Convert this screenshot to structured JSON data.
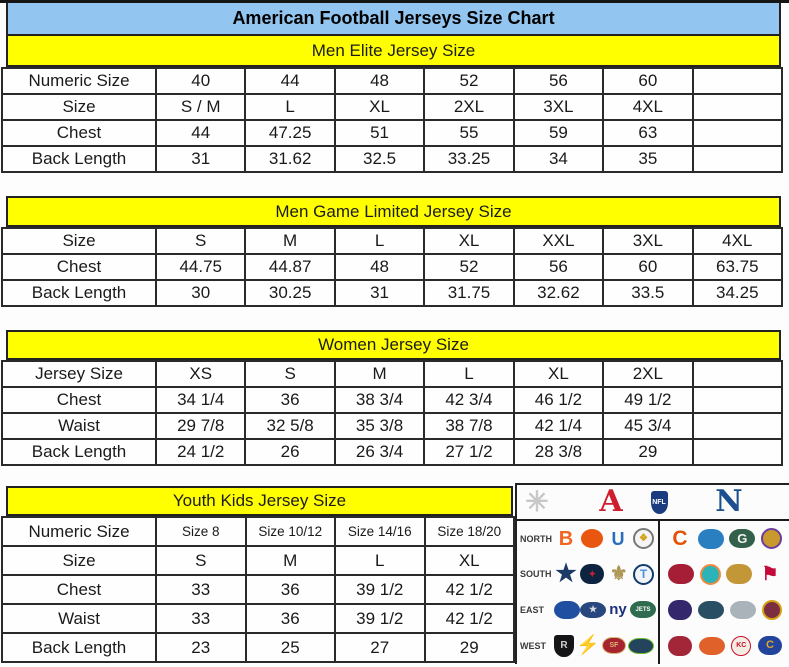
{
  "page": {
    "title": "American Football Jerseys Size Chart"
  },
  "colors": {
    "title_bar_bg": "#92c5f0",
    "section_band_bg": "#ffff00",
    "border": "#222222",
    "text": "#1a1a1a"
  },
  "tables": [
    {
      "name": "men-elite",
      "title": "Men Elite Jersey Size",
      "trailing_empty": true,
      "rows": [
        [
          "Numeric Size",
          "40",
          "44",
          "48",
          "52",
          "56",
          "60"
        ],
        [
          "Size",
          "S / M",
          "L",
          "XL",
          "2XL",
          "3XL",
          "4XL"
        ],
        [
          "Chest",
          "44",
          "47.25",
          "51",
          "55",
          "59",
          "63"
        ],
        [
          "Back Length",
          "31",
          "31.62",
          "32.5",
          "33.25",
          "34",
          "35"
        ]
      ]
    },
    {
      "name": "men-game-limited",
      "title": "Men Game Limited Jersey Size",
      "trailing_empty": false,
      "rows": [
        [
          "Size",
          "S",
          "M",
          "L",
          "XL",
          "XXL",
          "3XL",
          "4XL"
        ],
        [
          "Chest",
          "44.75",
          "44.87",
          "48",
          "52",
          "56",
          "60",
          "63.75"
        ],
        [
          "Back Length",
          "30",
          "30.25",
          "31",
          "31.75",
          "32.62",
          "33.5",
          "34.25"
        ]
      ]
    },
    {
      "name": "women",
      "title": "Women Jersey Size",
      "trailing_empty": true,
      "rows": [
        [
          "Jersey Size",
          "XS",
          "S",
          "M",
          "L",
          "XL",
          "2XL"
        ],
        [
          "Chest",
          "34 1/4",
          "36",
          "38 3/4",
          "42 3/4",
          "46 1/2",
          "49 1/2"
        ],
        [
          "Waist",
          "29 7/8",
          "32 5/8",
          "35 3/8",
          "38 7/8",
          "42 1/4",
          "45 3/4"
        ],
        [
          "Back Length",
          "24 1/2",
          "26",
          "26 3/4",
          "27 1/2",
          "28 3/8",
          "29"
        ]
      ]
    },
    {
      "name": "youth-kids",
      "title": "Youth Kids Jersey Size",
      "trailing_empty": false,
      "rows": [
        [
          "Numeric Size",
          "Size 8",
          "Size 10/12",
          "Size 14/16",
          "Size 18/20"
        ],
        [
          "Size",
          "S",
          "M",
          "L",
          "XL"
        ],
        [
          "Chest",
          "33",
          "36",
          "39 1/2",
          "42 1/2"
        ],
        [
          "Waist",
          "33",
          "36",
          "39 1/2",
          "42 1/2"
        ],
        [
          "Back Length",
          "23",
          "25",
          "27",
          "29"
        ]
      ]
    }
  ],
  "logo_panel": {
    "header": [
      {
        "name": "sunburst",
        "glyph": "✳",
        "fg": "#c8c8c8",
        "fs": 28
      },
      {
        "name": "afc-conference",
        "glyph": "A",
        "fg": "#cf1f2f",
        "fs": 30,
        "serif": true
      },
      {
        "name": "nfl-shield",
        "glyph": "NFL",
        "fg": "#ffffff",
        "bg": "#1b3c7e",
        "fs": 7,
        "w": 17,
        "h": 23,
        "shape": "shield"
      },
      {
        "name": "nfc-conference",
        "glyph": "N",
        "fg": "#1b4f8f",
        "fs": 30,
        "serif": true
      }
    ],
    "rows": [
      {
        "label": "NORTH",
        "afc": [
          {
            "name": "bengals",
            "glyph": "B",
            "fg": "#f26522",
            "fs": 20
          },
          {
            "name": "browns-helmet",
            "glyph": "",
            "bg": "#e8560f",
            "w": 22,
            "h": 19,
            "shape": "round"
          },
          {
            "name": "colts-horseshoe",
            "glyph": "U",
            "fg": "#2a6ebb",
            "fs": 18
          },
          {
            "name": "steelers",
            "glyph": "❖",
            "fg": "#d4a017",
            "bg": "#f4f4f4",
            "border": "2px solid #777",
            "fs": 10,
            "w": 21,
            "h": 21,
            "shape": "round"
          }
        ],
        "nfc": [
          {
            "name": "bears",
            "glyph": "C",
            "fg": "#e35205",
            "fs": 21
          },
          {
            "name": "lions",
            "glyph": "",
            "bg": "#2a7fc1",
            "w": 26,
            "h": 20,
            "shape": "oval"
          },
          {
            "name": "packers",
            "glyph": "G",
            "fg": "#f2f2f2",
            "bg": "#32604a",
            "fs": 13,
            "w": 26,
            "h": 19,
            "shape": "oval"
          },
          {
            "name": "vikings",
            "glyph": "",
            "bg": "#c9992e",
            "border": "2px solid #6a3e9e",
            "w": 21,
            "h": 21,
            "shape": "round"
          }
        ]
      },
      {
        "label": "SOUTH",
        "afc": [
          {
            "name": "cowboys-star",
            "glyph": "★",
            "fg": "#1b3a66",
            "fs": 24
          },
          {
            "name": "texans",
            "glyph": "✦",
            "fg": "#d02030",
            "bg": "#0d2440",
            "fs": 9,
            "w": 24,
            "h": 20,
            "shape": "oval"
          },
          {
            "name": "saints-fleur-de-lis",
            "glyph": "⚜",
            "fg": "#ad9554",
            "fs": 20
          },
          {
            "name": "titans",
            "glyph": "T",
            "fg": "#4b92db",
            "bg": "#f0f4f8",
            "border": "2px solid #123a6b",
            "fs": 12,
            "w": 21,
            "h": 21,
            "shape": "round"
          }
        ],
        "nfc": [
          {
            "name": "falcons",
            "glyph": "",
            "bg": "#a51e36",
            "w": 26,
            "h": 20,
            "shape": "oval"
          },
          {
            "name": "dolphins",
            "glyph": "",
            "bg": "#2bb3b8",
            "border": "2px solid #f08a3c",
            "w": 21,
            "h": 21,
            "shape": "round"
          },
          {
            "name": "jaguars",
            "glyph": "",
            "bg": "#c39738",
            "w": 26,
            "h": 20,
            "shape": "oval"
          },
          {
            "name": "buccaneers-flag",
            "glyph": "⚑",
            "fg": "#c6093b",
            "fs": 19
          }
        ]
      },
      {
        "label": "EAST",
        "afc": [
          {
            "name": "bills",
            "glyph": "",
            "bg": "#1f4fa0",
            "w": 26,
            "h": 18,
            "shape": "oval"
          },
          {
            "name": "patriots",
            "glyph": "★",
            "fg": "#d8dde3",
            "bg": "#27477e",
            "fs": 9,
            "w": 26,
            "h": 16,
            "shape": "oval"
          },
          {
            "name": "giants-ny",
            "glyph": "ny",
            "fg": "#1b2f7e",
            "fs": 15
          },
          {
            "name": "jets",
            "glyph": "JETS",
            "fg": "#ffffff",
            "bg": "#2f6b4f",
            "fs": 6,
            "w": 26,
            "h": 17,
            "shape": "oval"
          }
        ],
        "nfc": [
          {
            "name": "ravens",
            "glyph": "",
            "bg": "#35276b",
            "w": 24,
            "h": 20,
            "shape": "oval"
          },
          {
            "name": "panthers",
            "glyph": "",
            "bg": "#2a4e63",
            "w": 26,
            "h": 18,
            "shape": "oval"
          },
          {
            "name": "eagles",
            "glyph": "",
            "bg": "#aab3ba",
            "w": 26,
            "h": 18,
            "shape": "oval"
          },
          {
            "name": "redskins",
            "glyph": "",
            "bg": "#7a2e3f",
            "border": "2px solid #d4a017",
            "w": 20,
            "h": 20,
            "shape": "round"
          }
        ]
      },
      {
        "label": "WEST",
        "afc": [
          {
            "name": "raiders-shield",
            "glyph": "R",
            "fg": "#cfcfcf",
            "bg": "#151518",
            "fs": 10,
            "w": 20,
            "h": 22,
            "shape": "shield"
          },
          {
            "name": "chargers-bolt",
            "glyph": "⚡",
            "fg": "#e3a71d",
            "fs": 19
          },
          {
            "name": "49ers",
            "glyph": "SF",
            "fg": "#d9b777",
            "bg": "#a6242f",
            "border": "1px solid #d9b777",
            "fs": 7,
            "w": 24,
            "h": 17,
            "shape": "oval"
          },
          {
            "name": "seahawks",
            "glyph": "",
            "bg": "#24445e",
            "border": "1px solid #69be28",
            "w": 26,
            "h": 16,
            "shape": "oval"
          }
        ],
        "nfc": [
          {
            "name": "cardinals",
            "glyph": "",
            "bg": "#a32638",
            "w": 24,
            "h": 20,
            "shape": "oval"
          },
          {
            "name": "broncos",
            "glyph": "",
            "bg": "#e0622a",
            "w": 26,
            "h": 18,
            "shape": "oval"
          },
          {
            "name": "chiefs-arrowhead",
            "glyph": "KC",
            "fg": "#c8102e",
            "bg": "#f3ece2",
            "border": "1px solid #c8102e",
            "fs": 7,
            "w": 20,
            "h": 20,
            "shape": "round"
          },
          {
            "name": "rams-horn",
            "glyph": "C",
            "fg": "#e0a526",
            "bg": "#23449c",
            "fs": 11,
            "w": 24,
            "h": 19,
            "shape": "oval"
          }
        ]
      }
    ]
  }
}
